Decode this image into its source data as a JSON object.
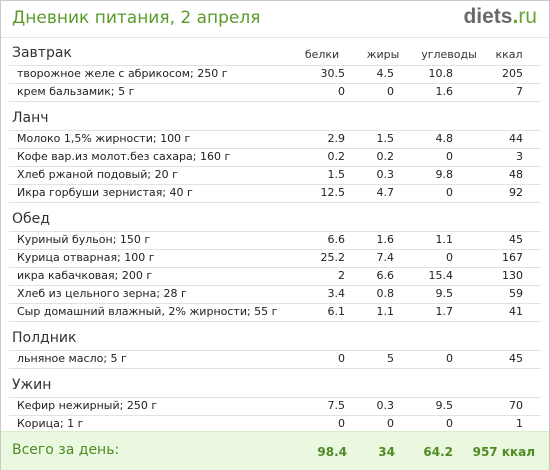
{
  "header": {
    "title": "Дневник питания, 2 апреля",
    "logo_main": "diets",
    "logo_dot": ".",
    "logo_tld": "ru"
  },
  "columns": {
    "protein": "белки",
    "fat": "жиры",
    "carbs": "углеводы",
    "kcal": "ккал"
  },
  "meals": [
    {
      "title": "Завтрак",
      "items": [
        {
          "name": "творожное желе с абрикосом; 250 г",
          "protein": "30.5",
          "fat": "4.5",
          "carbs": "10.8",
          "kcal": "205"
        },
        {
          "name": "крем бальзамик; 5 г",
          "protein": "0",
          "fat": "0",
          "carbs": "1.6",
          "kcal": "7"
        }
      ]
    },
    {
      "title": "Ланч",
      "items": [
        {
          "name": "Молоко 1,5% жирности; 100 г",
          "protein": "2.9",
          "fat": "1.5",
          "carbs": "4.8",
          "kcal": "44"
        },
        {
          "name": "Кофе вар.из молот.без сахара; 160 г",
          "protein": "0.2",
          "fat": "0.2",
          "carbs": "0",
          "kcal": "3"
        },
        {
          "name": "Хлеб ржаной подовый; 20 г",
          "protein": "1.5",
          "fat": "0.3",
          "carbs": "9.8",
          "kcal": "48"
        },
        {
          "name": "Икра горбуши зернистая; 40 г",
          "protein": "12.5",
          "fat": "4.7",
          "carbs": "0",
          "kcal": "92"
        }
      ]
    },
    {
      "title": "Обед",
      "items": [
        {
          "name": "Куриный бульон; 150 г",
          "protein": "6.6",
          "fat": "1.6",
          "carbs": "1.1",
          "kcal": "45"
        },
        {
          "name": "Курица отварная; 100 г",
          "protein": "25.2",
          "fat": "7.4",
          "carbs": "0",
          "kcal": "167"
        },
        {
          "name": "икра кабачковая; 200 г",
          "protein": "2",
          "fat": "6.6",
          "carbs": "15.4",
          "kcal": "130"
        },
        {
          "name": "Хлеб из цельного зерна; 28 г",
          "protein": "3.4",
          "fat": "0.8",
          "carbs": "9.5",
          "kcal": "59"
        },
        {
          "name": "Сыр домашний влажный, 2% жирности; 55 г",
          "protein": "6.1",
          "fat": "1.1",
          "carbs": "1.7",
          "kcal": "41"
        }
      ]
    },
    {
      "title": "Полдник",
      "items": [
        {
          "name": "льняное масло; 5 г",
          "protein": "0",
          "fat": "5",
          "carbs": "0",
          "kcal": "45"
        }
      ]
    },
    {
      "title": "Ужин",
      "items": [
        {
          "name": "Кефир нежирный; 250 г",
          "protein": "7.5",
          "fat": "0.3",
          "carbs": "9.5",
          "kcal": "70"
        },
        {
          "name": "Корица; 1 г",
          "protein": "0",
          "fat": "0",
          "carbs": "0",
          "kcal": "1"
        }
      ]
    }
  ],
  "total": {
    "label": "Всего за день:",
    "protein": "98.4",
    "fat": "34",
    "carbs": "64.2",
    "kcal": "957 ккал"
  },
  "colors": {
    "title_green": "#5a9b2a",
    "total_bg": "#e9f8df",
    "total_text": "#4f8a24"
  }
}
